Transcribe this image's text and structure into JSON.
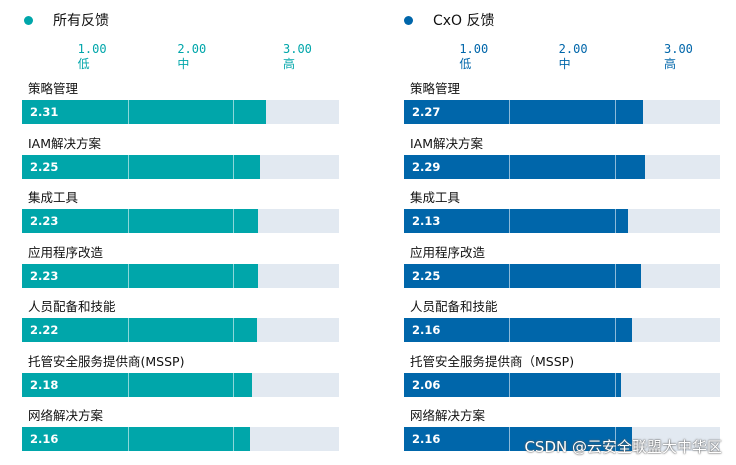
{
  "chart_data": [
    {
      "type": "bar",
      "orientation": "horizontal",
      "legend": "所有反馈",
      "color": "#00a6aa",
      "xlim": [
        0,
        3
      ],
      "ticks": [
        {
          "value": "1.00",
          "label": "低"
        },
        {
          "value": "2.00",
          "label": "中"
        },
        {
          "value": "3.00",
          "label": "高"
        }
      ],
      "categories": [
        "策略管理",
        "IAM解决方案",
        "集成工具",
        "应用程序改造",
        "人员配备和技能",
        "托管安全服务提供商(MSSP)",
        "网络解决方案"
      ],
      "values": [
        2.31,
        2.25,
        2.23,
        2.23,
        2.22,
        2.18,
        2.16
      ],
      "value_labels": [
        "2.31",
        "2.25",
        "2.23",
        "2.23",
        "2.22",
        "2.18",
        "2.16"
      ]
    },
    {
      "type": "bar",
      "orientation": "horizontal",
      "legend": "CxO 反馈",
      "color": "#0066aa",
      "xlim": [
        0,
        3
      ],
      "ticks": [
        {
          "value": "1.00",
          "label": "低"
        },
        {
          "value": "2.00",
          "label": "中"
        },
        {
          "value": "3.00",
          "label": "高"
        }
      ],
      "categories": [
        "策略管理",
        "IAM解决方案",
        "集成工具",
        "应用程序改造",
        "人员配备和技能",
        "托管安全服务提供商（MSSP)",
        "网络解决方案"
      ],
      "values": [
        2.27,
        2.29,
        2.13,
        2.25,
        2.16,
        2.06,
        2.16
      ],
      "value_labels": [
        "2.27",
        "2.29",
        "2.13",
        "2.25",
        "2.16",
        "2.06",
        "2.16"
      ]
    }
  ],
  "watermark": "CSDN @云安全联盟大中华区"
}
